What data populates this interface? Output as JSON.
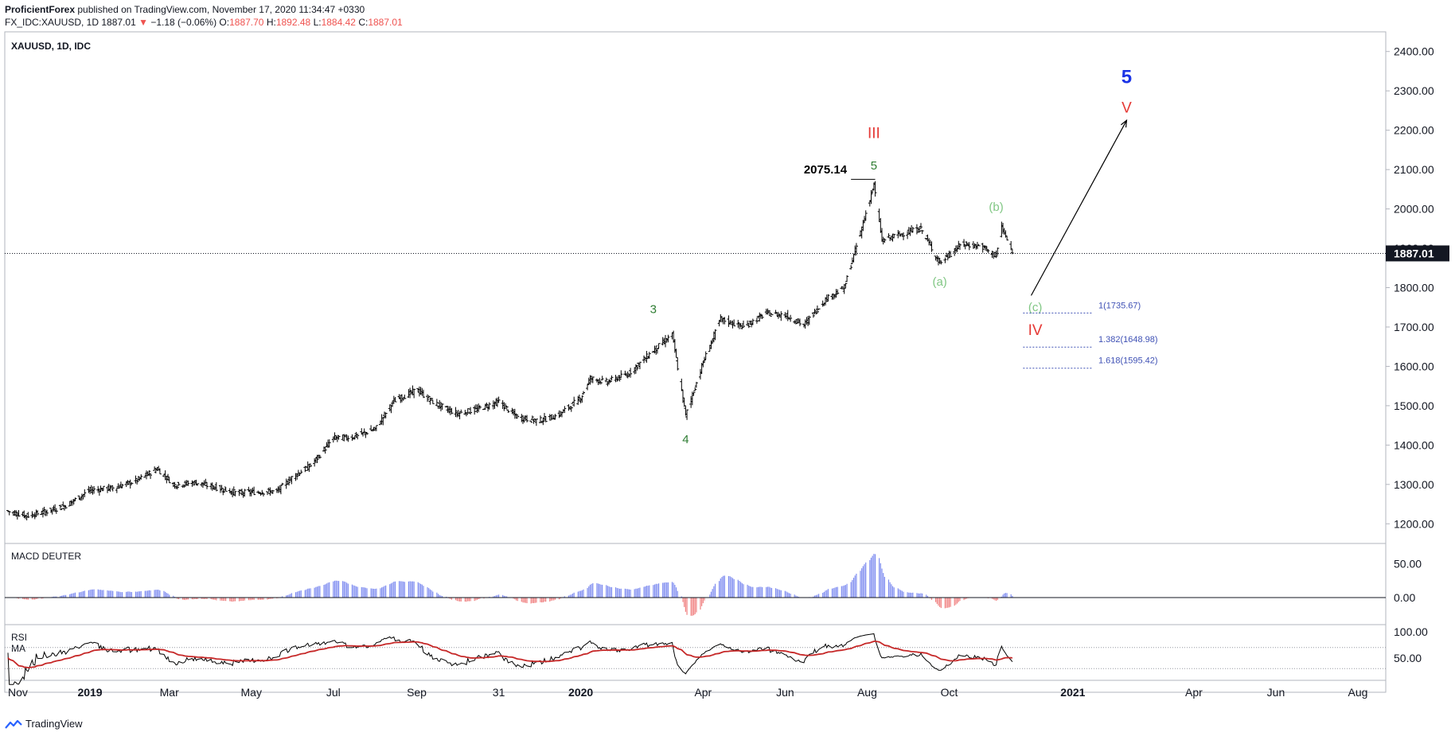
{
  "header": {
    "publisher": "ProficientForex",
    "published_text": " published on TradingView.com, November 17, 2020 11:34:47 +0330",
    "symbol": "FX_IDC:XAUUSD, 1D",
    "last": "1887.01",
    "change_arrow": "▼",
    "change": "−1.18 (−0.06%)",
    "o_label": "O:",
    "o_value": "1887.70",
    "h_label": "H:",
    "h_value": "1892.48",
    "l_label": "L:",
    "l_value": "1884.42",
    "c_label": "C:",
    "c_value": "1887.01"
  },
  "footer": {
    "brand": "TradingView",
    "logo_icon": "tradingview-logo-icon"
  },
  "colors": {
    "up": "#000000",
    "macd_pos": "#7e8cf0",
    "macd_neg": "#f08080",
    "rsi_line": "#000000",
    "rsi_ma": "#c62828",
    "wave_red": "#e53935",
    "wave_green": "#2e7d32",
    "wave_lightgreen": "#81c784",
    "wave_blue": "#1a33e6",
    "fib": "#3f51b5"
  },
  "chart_data": [
    {
      "type": "candlestick",
      "title": "XAUUSD, 1D, IDC",
      "ylim": [
        1150,
        2450
      ],
      "yticks": [
        "2400.00",
        "2300.00",
        "2200.00",
        "2100.00",
        "2000.00",
        "1900.00",
        "1800.00",
        "1700.00",
        "1600.00",
        "1500.00",
        "1400.00",
        "1300.00",
        "1200.00"
      ],
      "xticks": [
        "Nov",
        "2019",
        "Mar",
        "May",
        "Jul",
        "Sep",
        "31",
        "2020",
        "Apr",
        "Jun",
        "Aug",
        "Oct",
        "2021",
        "Apr",
        "Jun",
        "Aug"
      ],
      "last_price_label": "1887.01",
      "close_path": {
        "dates": [
          "2018-11-01",
          "2018-11-15",
          "2018-12-01",
          "2018-12-15",
          "2019-01-01",
          "2019-01-20",
          "2019-02-05",
          "2019-02-20",
          "2019-03-05",
          "2019-03-20",
          "2019-04-05",
          "2019-04-20",
          "2019-05-05",
          "2019-05-20",
          "2019-06-01",
          "2019-06-15",
          "2019-07-01",
          "2019-07-15",
          "2019-08-01",
          "2019-08-15",
          "2019-09-01",
          "2019-09-15",
          "2019-10-01",
          "2019-10-15",
          "2019-11-01",
          "2019-11-15",
          "2019-12-01",
          "2019-12-15",
          "2020-01-01",
          "2020-01-08",
          "2020-01-20",
          "2020-02-05",
          "2020-02-24",
          "2020-03-09",
          "2020-03-19",
          "2020-04-01",
          "2020-04-14",
          "2020-05-01",
          "2020-05-18",
          "2020-06-01",
          "2020-06-15",
          "2020-07-01",
          "2020-07-15",
          "2020-07-27",
          "2020-08-06",
          "2020-08-12",
          "2020-08-25",
          "2020-09-10",
          "2020-09-24",
          "2020-10-10",
          "2020-10-25",
          "2020-11-05",
          "2020-11-09",
          "2020-11-17"
        ],
        "values": [
          1232,
          1220,
          1232,
          1248,
          1285,
          1292,
          1310,
          1340,
          1298,
          1305,
          1292,
          1278,
          1281,
          1282,
          1320,
          1350,
          1418,
          1420,
          1440,
          1512,
          1540,
          1505,
          1480,
          1490,
          1510,
          1470,
          1462,
          1475,
          1520,
          1570,
          1560,
          1580,
          1640,
          1680,
          1475,
          1610,
          1720,
          1700,
          1735,
          1730,
          1705,
          1770,
          1800,
          1940,
          2062,
          1920,
          1935,
          1950,
          1862,
          1910,
          1905,
          1880,
          1955,
          1887
        ]
      },
      "annotations": [
        {
          "text": "III",
          "date": "2020-08-06",
          "price": 2180,
          "color": "wave_red"
        },
        {
          "text": "5",
          "date": "2020-08-06",
          "price": 2100,
          "color": "wave_green"
        },
        {
          "text": "2075.14",
          "date": "2020-07-17",
          "price": 2090,
          "color": "#000000"
        },
        {
          "text": "3",
          "date": "2020-02-24",
          "price": 1735,
          "color": "wave_green"
        },
        {
          "text": "4",
          "date": "2020-03-19",
          "price": 1405,
          "color": "wave_green"
        },
        {
          "text": "(b)",
          "date": "2020-11-05",
          "price": 1995,
          "color": "wave_lightgreen"
        },
        {
          "text": "(a)",
          "date": "2020-09-24",
          "price": 1805,
          "color": "wave_lightgreen"
        },
        {
          "text": "(c)",
          "date": "2020-12-04",
          "price": 1740,
          "color": "wave_lightgreen"
        },
        {
          "text": "IV",
          "date": "2020-12-04",
          "price": 1680,
          "color": "wave_red"
        },
        {
          "text": "5",
          "date": "2021-02-10",
          "price": 2320,
          "color": "wave_blue"
        },
        {
          "text": "V",
          "date": "2021-02-10",
          "price": 2245,
          "color": "wave_red"
        }
      ],
      "fib_levels": [
        {
          "label": "1(1735.67)",
          "price": 1735.67
        },
        {
          "label": "1.382(1648.98)",
          "price": 1648.98
        },
        {
          "label": "1.618(1595.42)",
          "price": 1595.42
        }
      ],
      "projection": {
        "from_date": "2020-12-01",
        "from_price": 1780,
        "to_date": "2021-02-10",
        "to_price": 2225
      }
    },
    {
      "type": "bar",
      "title": "MACD DEUTER",
      "yticks": [
        "50.00",
        "0.00"
      ],
      "ylim": [
        -40,
        80
      ]
    },
    {
      "type": "line",
      "title": "RSI",
      "subtitle": "MA",
      "yticks": [
        "100.00",
        "50.00"
      ],
      "ylim": [
        15,
        100
      ]
    }
  ]
}
